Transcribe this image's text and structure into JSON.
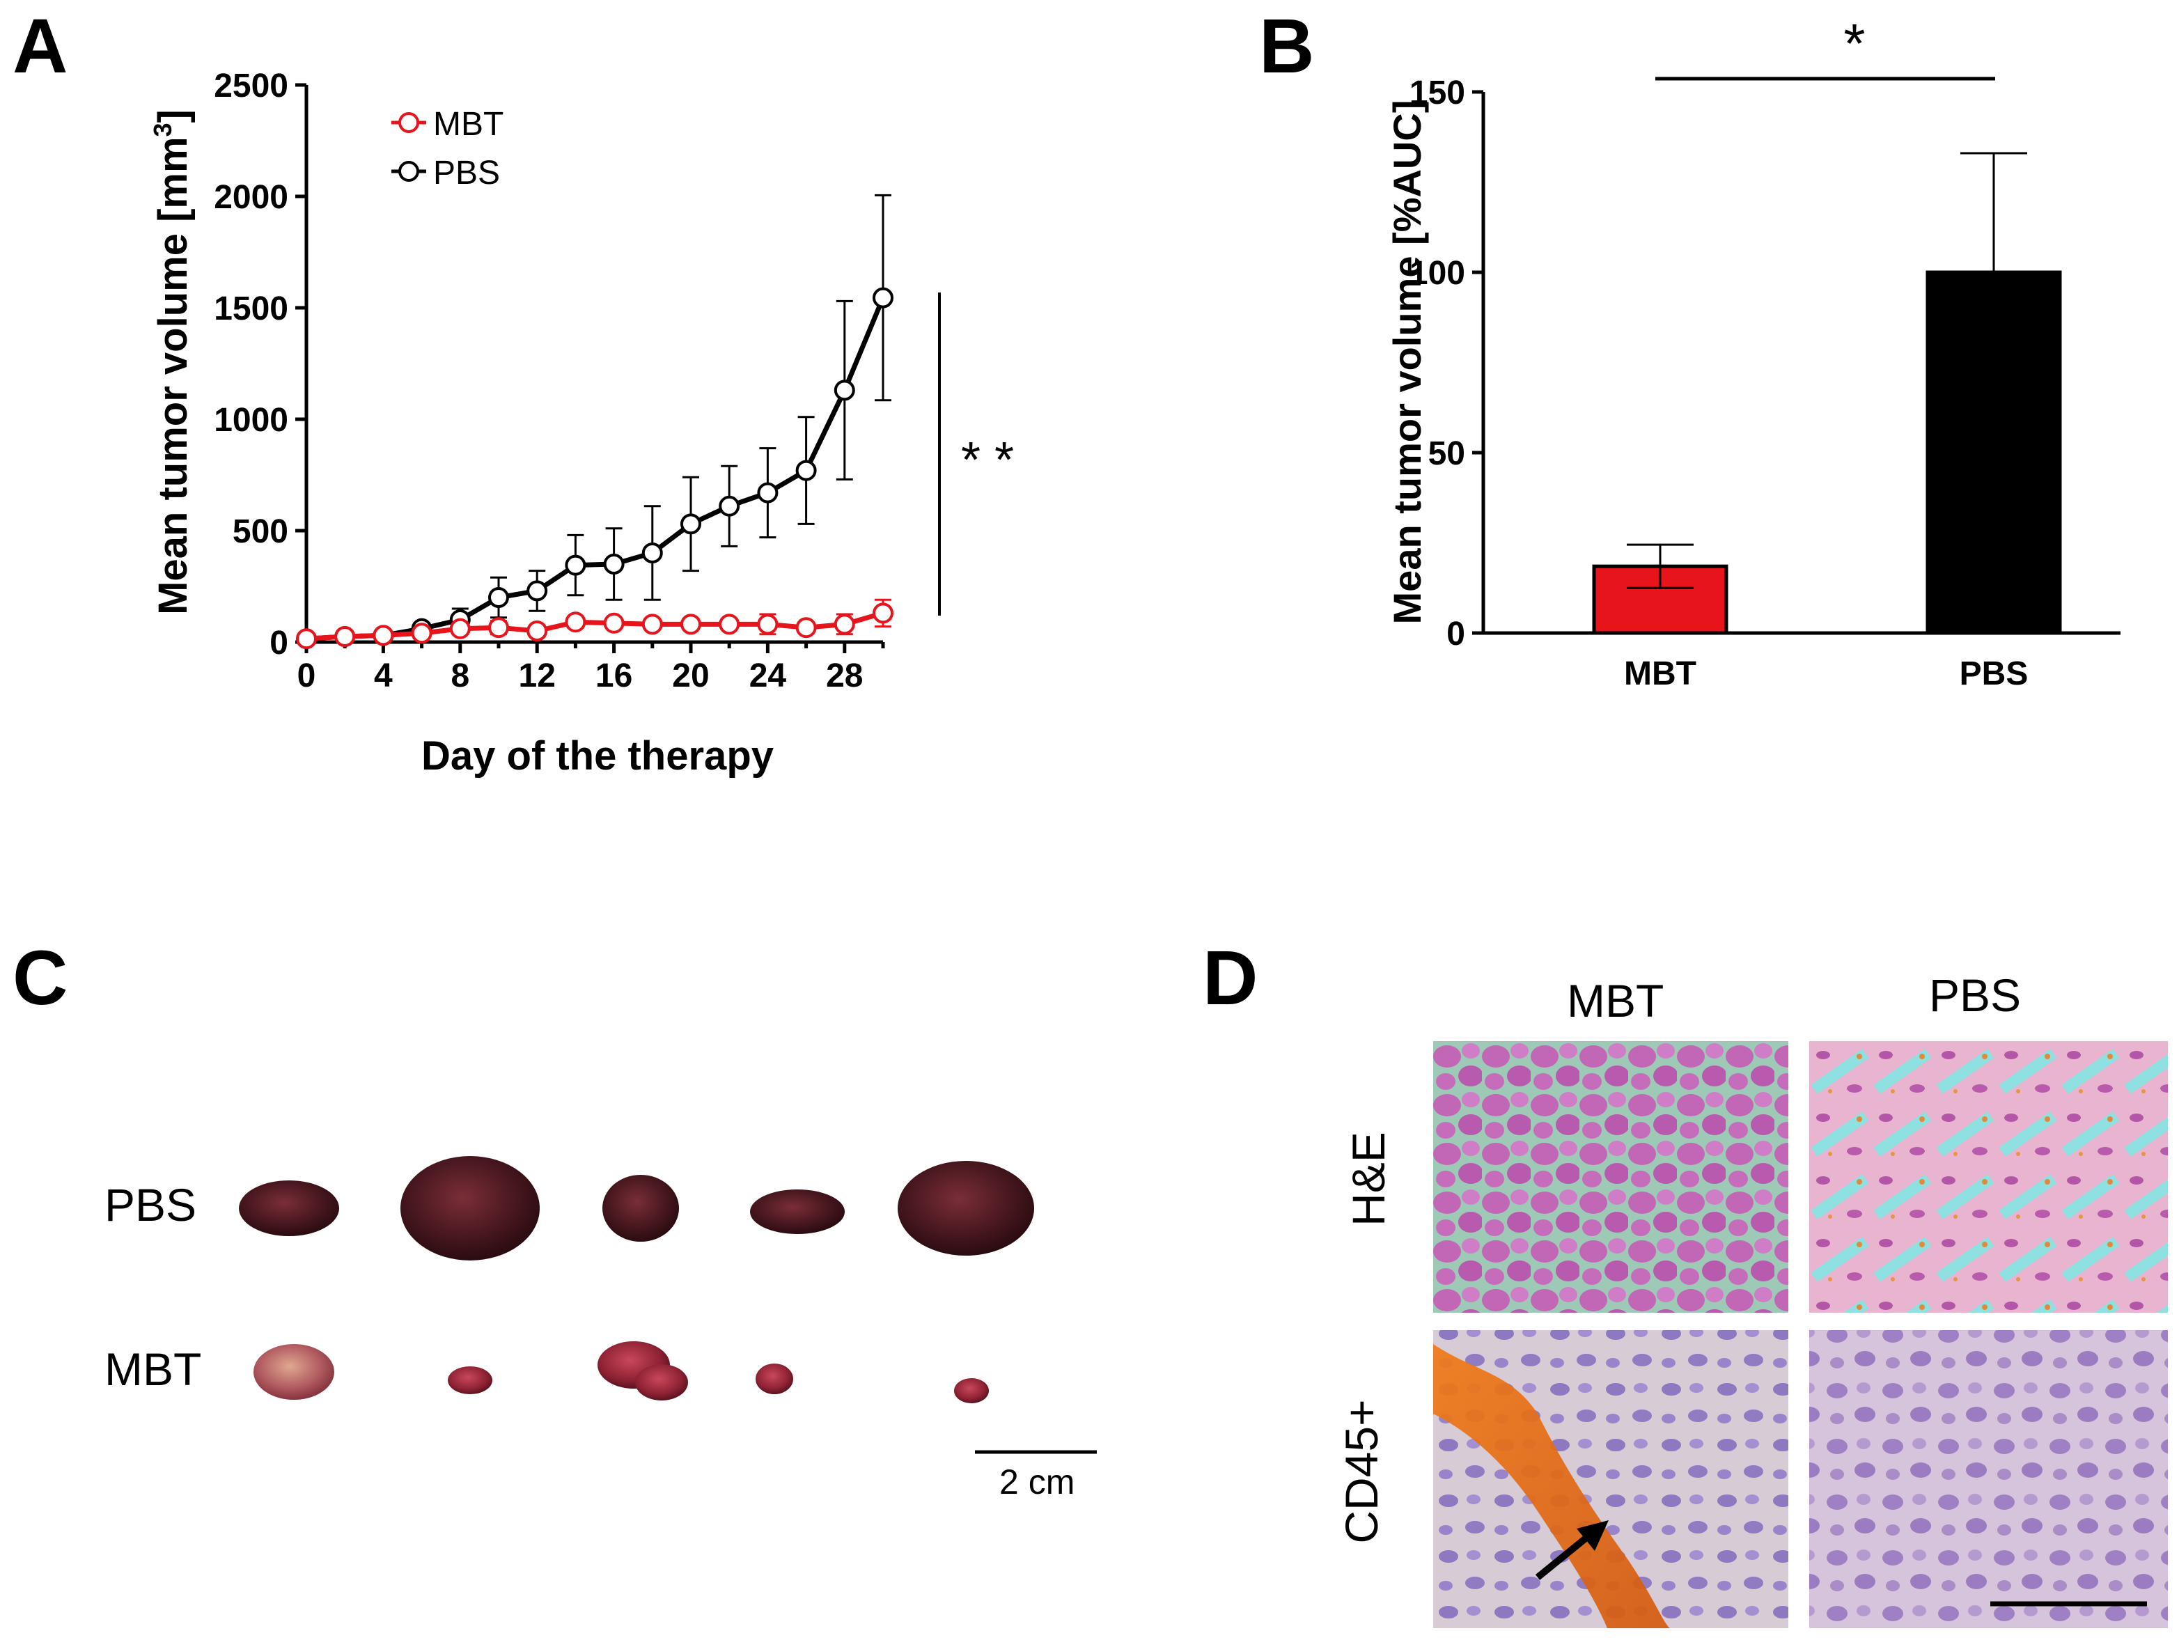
{
  "panels": {
    "a": "A",
    "b": "B",
    "c": "C",
    "d": "D"
  },
  "colors": {
    "mbt": "#e8141b",
    "pbs": "#000000"
  },
  "chart_data": [
    {
      "id": "A",
      "type": "line",
      "xlabel": "Day of the therapy",
      "ylabel": "Mean tumor volume [mm",
      "ylabel_sup": "3",
      "ylabel_end": "]",
      "xlim": [
        0,
        30
      ],
      "ylim": [
        0,
        2500
      ],
      "xticks": [
        "0",
        "4",
        "8",
        "12",
        "16",
        "20",
        "24",
        "28"
      ],
      "yticks": [
        "0",
        "500",
        "1000",
        "1500",
        "2000",
        "2500"
      ],
      "significance": "* *",
      "series": [
        {
          "name": "MBT",
          "color": "#e8141b",
          "x": [
            0,
            2,
            4,
            6,
            8,
            10,
            12,
            14,
            16,
            18,
            20,
            22,
            24,
            26,
            28,
            30
          ],
          "y": [
            15,
            25,
            30,
            40,
            60,
            65,
            50,
            90,
            85,
            80,
            80,
            80,
            80,
            65,
            80,
            130
          ],
          "err": [
            5,
            8,
            10,
            12,
            25,
            30,
            20,
            25,
            20,
            20,
            20,
            20,
            45,
            20,
            45,
            60
          ]
        },
        {
          "name": "PBS",
          "color": "#000000",
          "x": [
            0,
            2,
            4,
            6,
            8,
            10,
            12,
            14,
            16,
            18,
            20,
            22,
            24,
            26,
            28,
            30
          ],
          "y": [
            15,
            25,
            30,
            60,
            100,
            200,
            230,
            345,
            350,
            400,
            530,
            610,
            670,
            770,
            1130,
            1545
          ],
          "err": [
            5,
            8,
            10,
            25,
            50,
            90,
            90,
            135,
            160,
            210,
            210,
            180,
            200,
            240,
            400,
            460
          ]
        }
      ]
    },
    {
      "id": "B",
      "type": "bar",
      "categories": [
        "MBT",
        "PBS"
      ],
      "values": [
        18.5,
        100
      ],
      "errors": [
        6,
        33
      ],
      "bar_colors": [
        "#e8141b",
        "#000000"
      ],
      "ylabel": "Mean tumor volume [%AUC]",
      "ylim": [
        0,
        150
      ],
      "yticks": [
        "0",
        "50",
        "100",
        "150"
      ],
      "significance": "*"
    }
  ],
  "panel_c": {
    "rows": [
      "PBS",
      "MBT"
    ],
    "scale_bar": "2 cm"
  },
  "panel_d": {
    "columns": [
      "MBT",
      "PBS"
    ],
    "rows": [
      "H&E",
      "CD45+"
    ]
  }
}
